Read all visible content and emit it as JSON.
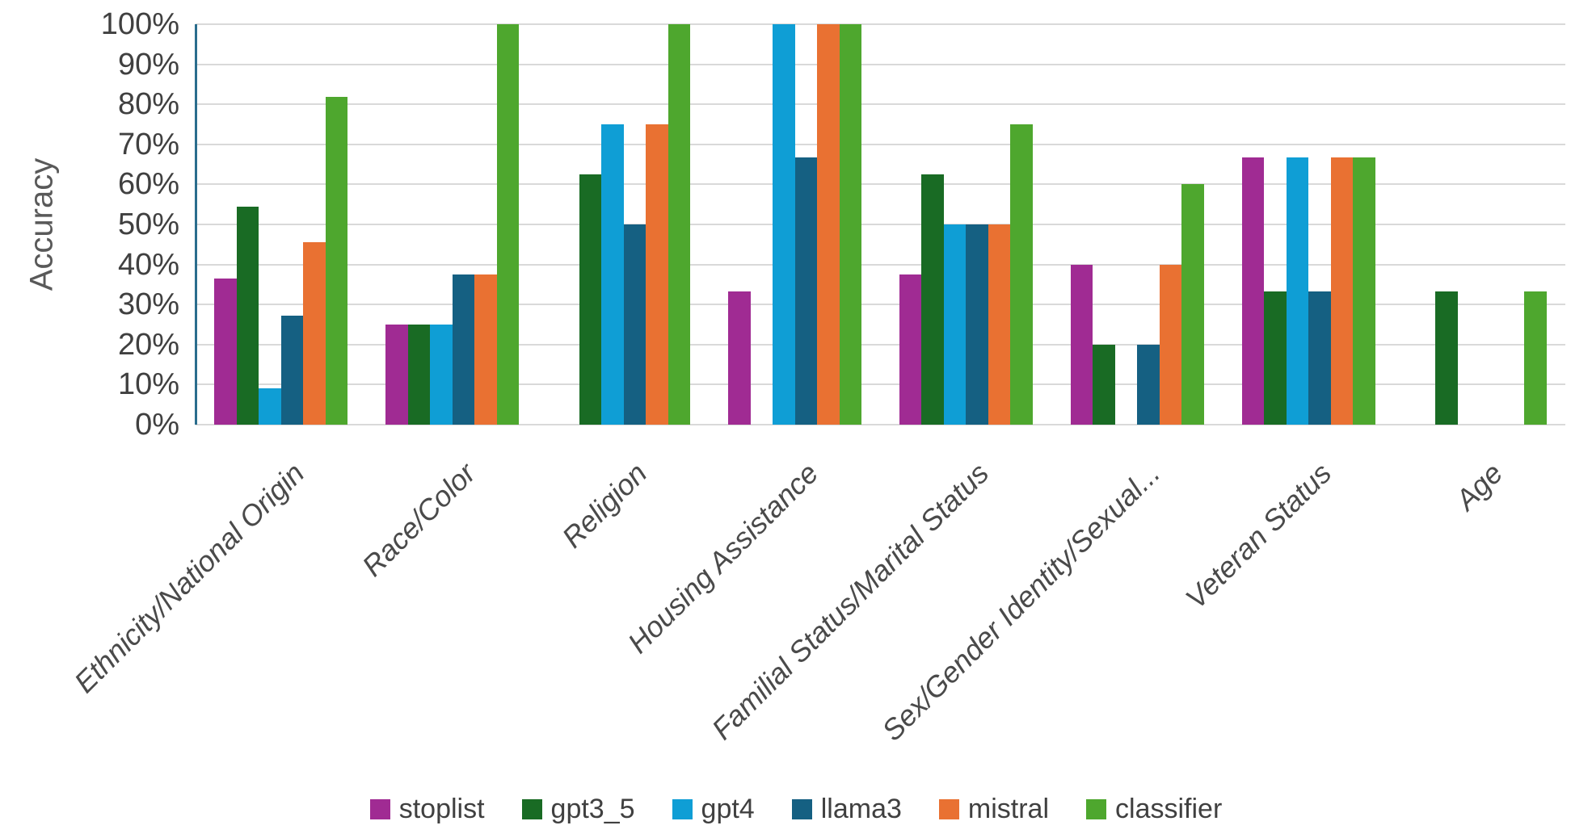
{
  "chart_data": {
    "type": "bar",
    "title": "",
    "ylabel": "Accuracy",
    "xlabel": "",
    "ylim": [
      0,
      100
    ],
    "grid": true,
    "legend_position": "bottom",
    "axis_line_color": "#2A6D8D",
    "gridline_color": "#D9D9D9",
    "text_color": "#404040",
    "y_ticks": [
      {
        "value": 100,
        "label": "100%"
      },
      {
        "value": 90,
        "label": "90%"
      },
      {
        "value": 80,
        "label": "80%"
      },
      {
        "value": 70,
        "label": "70%"
      },
      {
        "value": 60,
        "label": "60%"
      },
      {
        "value": 50,
        "label": "50%"
      },
      {
        "value": 40,
        "label": "40%"
      },
      {
        "value": 30,
        "label": "30%"
      },
      {
        "value": 20,
        "label": "20%"
      },
      {
        "value": 10,
        "label": "10%"
      },
      {
        "value": 0,
        "label": "0%"
      }
    ],
    "categories": [
      "Ethnicity/National Origin",
      "Race/Color",
      "Religion",
      "Housing Assistance",
      "Familial Status/Marital Status",
      "Sex/Gender Identity/Sexual...",
      "Veteran Status",
      "Age"
    ],
    "series": [
      {
        "name": "stoplist",
        "color": "#A02B93",
        "values": [
          36.4,
          25,
          0,
          33.3,
          37.5,
          40,
          66.7,
          0
        ]
      },
      {
        "name": "gpt3_5",
        "color": "#196B24",
        "values": [
          54.5,
          25,
          62.5,
          0,
          62.5,
          20,
          33.3,
          33.3
        ]
      },
      {
        "name": "gpt4",
        "color": "#0F9ED5",
        "values": [
          9.1,
          25,
          75,
          100,
          50,
          0,
          66.7,
          0
        ]
      },
      {
        "name": "llama3",
        "color": "#156082",
        "values": [
          27.3,
          37.5,
          50,
          66.7,
          50,
          20,
          33.3,
          0
        ]
      },
      {
        "name": "mistral",
        "color": "#E97132",
        "values": [
          45.5,
          37.5,
          75,
          100,
          50,
          40,
          66.7,
          0
        ]
      },
      {
        "name": "classifier",
        "color": "#4EA72E",
        "values": [
          81.8,
          100,
          100,
          100,
          75,
          60,
          66.7,
          33.3
        ]
      }
    ]
  }
}
